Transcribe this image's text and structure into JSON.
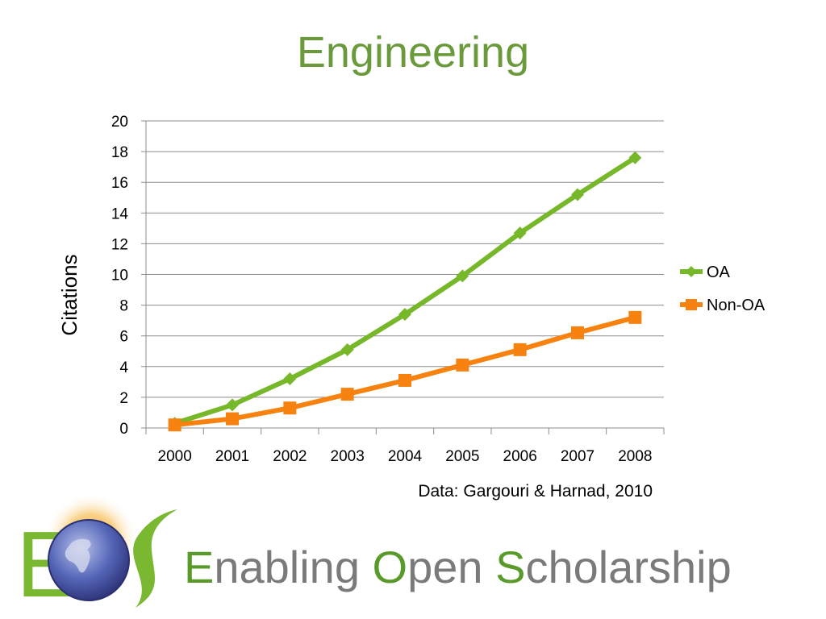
{
  "title": "Engineering",
  "colors": {
    "title": "#6a9a3c",
    "oa": "#76b82a",
    "non_oa": "#f7820f",
    "footer_accent": "#5a9a2a",
    "footer_text": "#7a7a7a",
    "grid": "#8c8c8c"
  },
  "chart_data": {
    "type": "line",
    "x": [
      "2000",
      "2001",
      "2002",
      "2003",
      "2004",
      "2005",
      "2006",
      "2007",
      "2008"
    ],
    "series": [
      {
        "name": "OA",
        "values": [
          0.3,
          1.5,
          3.2,
          5.1,
          7.4,
          9.9,
          12.7,
          15.2,
          17.6
        ]
      },
      {
        "name": "Non-OA",
        "values": [
          0.2,
          0.6,
          1.3,
          2.2,
          3.1,
          4.1,
          5.1,
          6.2,
          7.2
        ]
      }
    ],
    "ylabel": "Citations",
    "xlabel": "",
    "ylim": [
      0,
      20
    ],
    "yticks": [
      "0",
      "2",
      "4",
      "6",
      "8",
      "10",
      "12",
      "14",
      "16",
      "18",
      "20"
    ],
    "grid": true,
    "legend_position": "right"
  },
  "source_note": "Data: Gargouri & Harnad, 2010",
  "footer": {
    "parts": [
      {
        "accent": "E",
        "rest": "nabling "
      },
      {
        "accent": "O",
        "rest": "pen "
      },
      {
        "accent": "S",
        "rest": "cholarship"
      }
    ]
  },
  "logo": {
    "letter": "E",
    "icon": "globe-logo-icon"
  }
}
